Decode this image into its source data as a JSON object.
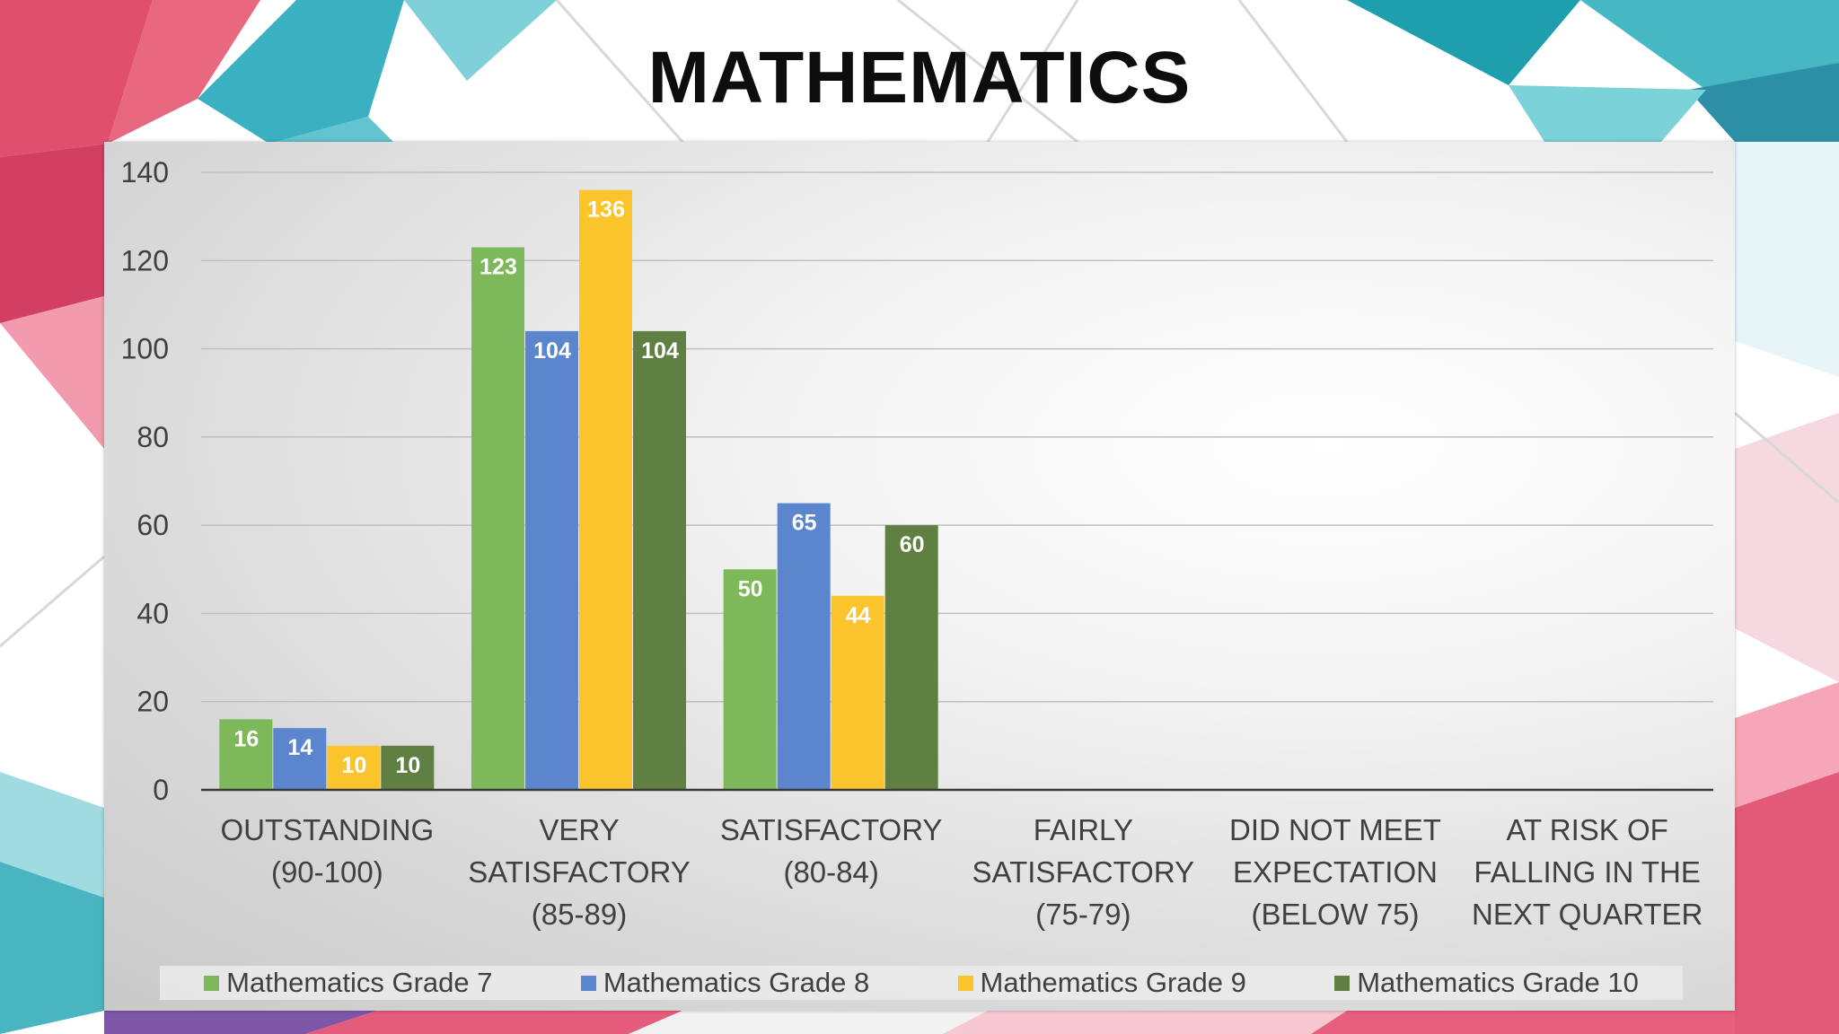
{
  "slide": {
    "title": "MATHEMATICS"
  },
  "colors": {
    "grade7": "#7db85a",
    "grade8": "#5b85cc",
    "grade9": "#fcc42c",
    "grade10": "#5f7f43",
    "axis_text": "#404040",
    "grid": "#bfbfbf"
  },
  "chart_data": {
    "type": "bar",
    "title": "",
    "xlabel": "",
    "ylabel": "",
    "ylim": [
      0,
      140
    ],
    "yticks": [
      0,
      20,
      40,
      60,
      80,
      100,
      120,
      140
    ],
    "grid": true,
    "legend_position": "bottom",
    "categories": [
      [
        "OUTSTANDING",
        "(90-100)"
      ],
      [
        "VERY",
        "SATISFACTORY",
        "(85-89)"
      ],
      [
        "SATISFACTORY",
        "(80-84)"
      ],
      [
        "FAIRLY",
        "SATISFACTORY",
        "(75-79)"
      ],
      [
        "DID NOT MEET",
        "EXPECTATION",
        "(BELOW 75)"
      ],
      [
        "AT RISK OF",
        "FALLING IN THE",
        "NEXT QUARTER"
      ]
    ],
    "series": [
      {
        "name": "Mathematics Grade 7",
        "color": "#7db85a",
        "values": [
          16,
          123,
          50,
          null,
          null,
          null
        ]
      },
      {
        "name": "Mathematics Grade 8",
        "color": "#5b85cc",
        "values": [
          14,
          104,
          65,
          null,
          null,
          null
        ]
      },
      {
        "name": "Mathematics Grade 9",
        "color": "#fcc42c",
        "values": [
          10,
          136,
          44,
          null,
          null,
          null
        ]
      },
      {
        "name": "Mathematics Grade 10",
        "color": "#5f7f43",
        "values": [
          10,
          104,
          60,
          null,
          null,
          null
        ]
      }
    ]
  }
}
